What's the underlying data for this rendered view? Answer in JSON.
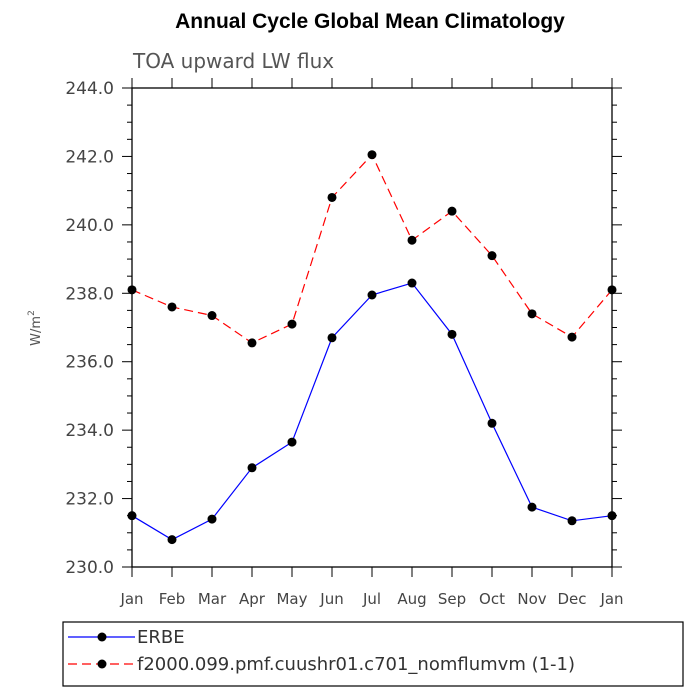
{
  "chart_data": {
    "type": "line",
    "title": "Annual Cycle Global Mean Climatology",
    "subtitle": "TOA upward LW flux",
    "ylabel": "W/m",
    "ylabel_superscript": "2",
    "xlabel": "",
    "ylim": [
      230.0,
      244.0
    ],
    "yticks": [
      "230.0",
      "232.0",
      "234.0",
      "236.0",
      "238.0",
      "240.0",
      "242.0",
      "244.0"
    ],
    "categories": [
      "Jan",
      "Feb",
      "Mar",
      "Apr",
      "May",
      "Jun",
      "Jul",
      "Aug",
      "Sep",
      "Oct",
      "Nov",
      "Dec",
      "Jan"
    ],
    "grid": false,
    "legend_placement": "bottom",
    "series": [
      {
        "name": "ERBE",
        "color": "#0000ff",
        "line_style": "solid",
        "marker_color": "#000000",
        "values": [
          231.5,
          230.8,
          231.4,
          232.9,
          233.65,
          236.7,
          237.95,
          238.3,
          236.8,
          234.2,
          231.75,
          231.35,
          231.5
        ]
      },
      {
        "name": "f2000.099.pmf.cuushr01.c701_nomflumvm (1-1)",
        "color": "#ff0000",
        "line_style": "dashed",
        "marker_color": "#000000",
        "values": [
          238.1,
          237.6,
          237.35,
          236.55,
          237.1,
          240.8,
          242.05,
          239.55,
          240.4,
          239.1,
          237.4,
          236.72,
          238.1
        ]
      }
    ]
  }
}
